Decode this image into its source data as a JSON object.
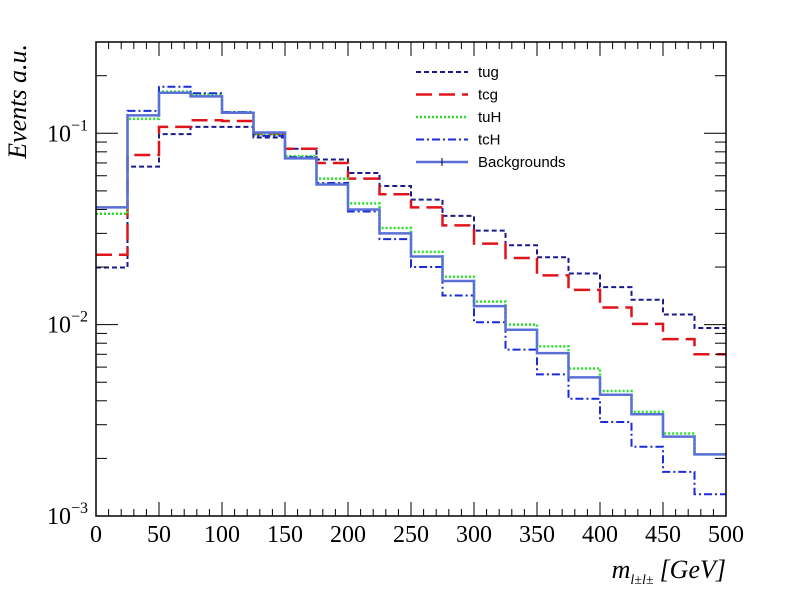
{
  "chart_data": {
    "type": "line",
    "style": "step-histogram",
    "xlabel": "m_{l±l±} [GeV]",
    "xlabel_main": "m",
    "xlabel_sub": "l±l±",
    "xlabel_unit": "[GeV]",
    "ylabel": "Events a.u.",
    "yscale": "log",
    "xlim": [
      0,
      500
    ],
    "ylim": [
      0.001,
      0.3
    ],
    "legend_position": "top-right",
    "x_ticks": [
      "0",
      "50",
      "100",
      "150",
      "200",
      "250",
      "300",
      "350",
      "400",
      "450",
      "500"
    ],
    "y_ticks": [
      {
        "value": 0.001,
        "base": "10",
        "exp": "−3"
      },
      {
        "value": 0.01,
        "base": "10",
        "exp": "−2"
      },
      {
        "value": 0.1,
        "base": "10",
        "exp": "−1"
      }
    ],
    "bin_edges": [
      0,
      25,
      50,
      75,
      100,
      125,
      150,
      175,
      200,
      225,
      250,
      275,
      300,
      325,
      350,
      375,
      400,
      425,
      450,
      475,
      500
    ],
    "series": [
      {
        "name": "tug",
        "color": "#1a1a8c",
        "dash": "5,3",
        "width": 2,
        "values": [
          0.0199,
          0.067,
          0.099,
          0.108,
          0.108,
          0.095,
          0.083,
          0.073,
          0.062,
          0.053,
          0.045,
          0.037,
          0.031,
          0.026,
          0.0225,
          0.0185,
          0.0157,
          0.0135,
          0.0113,
          0.0096
        ]
      },
      {
        "name": "tcg",
        "color": "#e0141b",
        "dash": "16,7",
        "width": 2.5,
        "values": [
          0.0232,
          0.077,
          0.108,
          0.117,
          0.116,
          0.099,
          0.083,
          0.07,
          0.058,
          0.048,
          0.041,
          0.033,
          0.0265,
          0.0223,
          0.0181,
          0.0152,
          0.0123,
          0.0101,
          0.0084,
          0.007
        ]
      },
      {
        "name": "tuH",
        "color": "#28e028",
        "dash": "2,2",
        "width": 2.5,
        "values": [
          0.038,
          0.119,
          0.165,
          0.16,
          0.129,
          0.099,
          0.076,
          0.058,
          0.043,
          0.032,
          0.024,
          0.0178,
          0.0132,
          0.01,
          0.0077,
          0.0059,
          0.0045,
          0.0035,
          0.0027,
          0.0021
        ]
      },
      {
        "name": "tcH",
        "color": "#1a2bd8",
        "dash": "8,3,2,3",
        "width": 2,
        "values": [
          0.041,
          0.131,
          0.175,
          0.162,
          0.129,
          0.097,
          0.075,
          0.055,
          0.039,
          0.028,
          0.02,
          0.0142,
          0.0103,
          0.0074,
          0.0055,
          0.0041,
          0.0031,
          0.0023,
          0.0017,
          0.0013
        ]
      },
      {
        "name": "Backgrounds",
        "color": "#5b6fd8",
        "dash": "",
        "width": 2.5,
        "values": [
          0.041,
          0.124,
          0.163,
          0.156,
          0.128,
          0.101,
          0.074,
          0.054,
          0.04,
          0.03,
          0.0227,
          0.0169,
          0.0125,
          0.0094,
          0.0071,
          0.0053,
          0.0043,
          0.0034,
          0.0026,
          0.0021
        ]
      }
    ]
  }
}
